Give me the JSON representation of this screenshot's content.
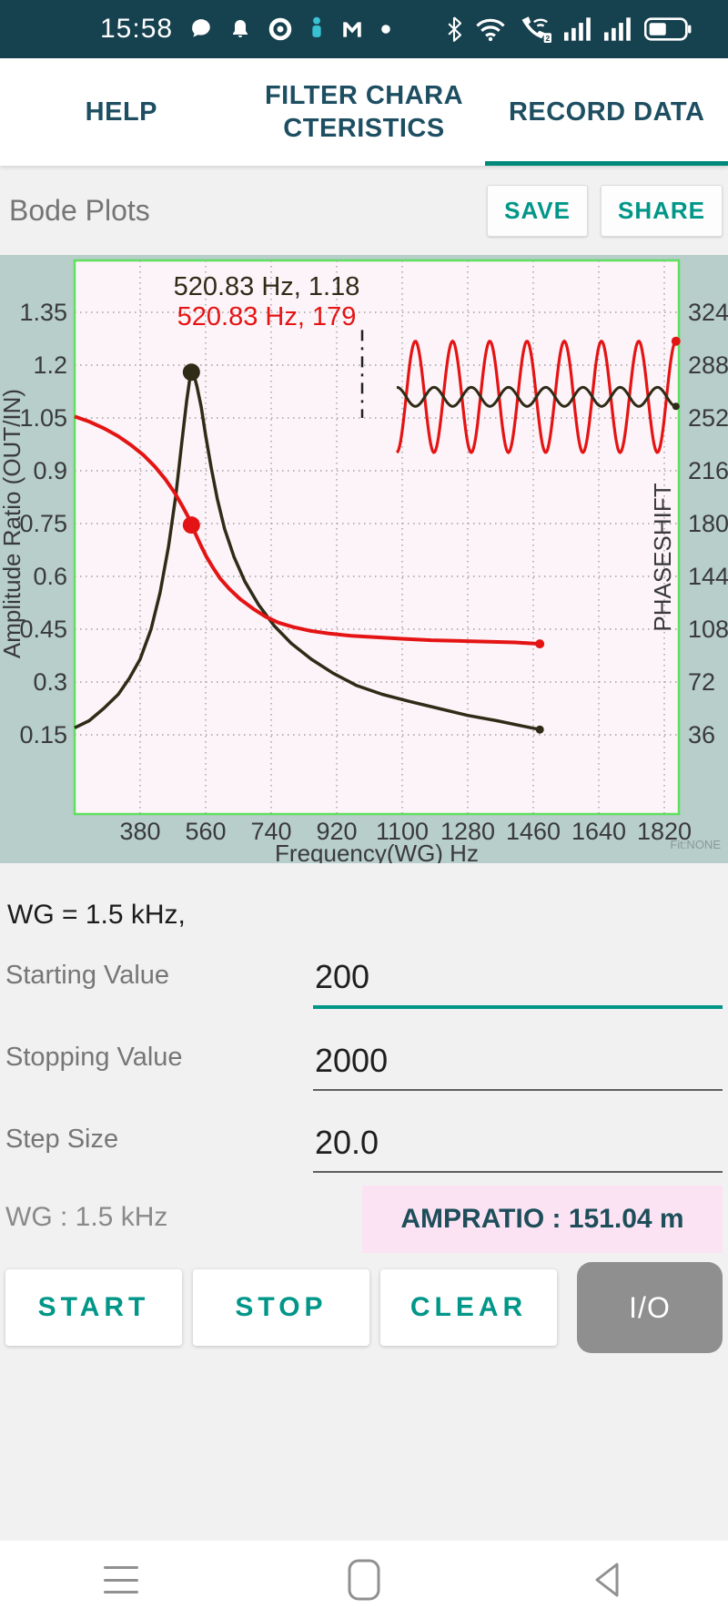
{
  "status_bar": {
    "time": "15:58"
  },
  "tabs": {
    "items": [
      {
        "label": "HELP"
      },
      {
        "label": "FILTER CHARACTERISTICS"
      },
      {
        "label": "RECORD DATA"
      }
    ],
    "active_index": 2
  },
  "header": {
    "title": "Bode Plots",
    "save_label": "SAVE",
    "share_label": "SHARE"
  },
  "chart_data": {
    "type": "line",
    "x_axis": {
      "label": "Frequency(WG) Hz",
      "range": [
        200,
        1860
      ],
      "ticks": [
        380,
        560,
        740,
        920,
        1100,
        1280,
        1460,
        1640,
        1820
      ]
    },
    "y_left": {
      "label": "Amplitude Ratio (OUT/IN)",
      "ticks": [
        0.15,
        0.3,
        0.45,
        0.6,
        0.75,
        0.9,
        1.05,
        1.2,
        1.35
      ]
    },
    "y_right": {
      "label": "PHASESHIFT",
      "ticks": [
        36,
        72,
        108,
        144,
        180,
        216,
        252,
        288,
        324
      ]
    },
    "grid": true,
    "fit_note": "Fit:NONE",
    "annotations": [
      {
        "text": "520.83 Hz, 1.18",
        "color": "#2e2b17"
      },
      {
        "text": "520.83 Hz, 179",
        "color": "#e41414"
      }
    ],
    "markers": [
      {
        "series": "amplitude_ratio",
        "f": 520.83,
        "value": 1.18
      },
      {
        "series": "phase",
        "f": 520.83,
        "value": 179
      }
    ],
    "series": [
      {
        "name": "amplitude_ratio",
        "axis": "left",
        "color": "#2e2b17",
        "width": 3.5,
        "end_marker": 4.5,
        "points": [
          [
            200,
            0.17
          ],
          [
            240,
            0.19
          ],
          [
            280,
            0.225
          ],
          [
            320,
            0.265
          ],
          [
            350,
            0.31
          ],
          [
            380,
            0.365
          ],
          [
            410,
            0.45
          ],
          [
            435,
            0.555
          ],
          [
            458,
            0.685
          ],
          [
            478,
            0.83
          ],
          [
            495,
            0.985
          ],
          [
            508,
            1.1
          ],
          [
            517,
            1.165
          ],
          [
            521,
            1.18
          ],
          [
            527,
            1.175
          ],
          [
            536,
            1.14
          ],
          [
            548,
            1.08
          ],
          [
            560,
            1.0
          ],
          [
            575,
            0.91
          ],
          [
            592,
            0.82
          ],
          [
            612,
            0.735
          ],
          [
            638,
            0.655
          ],
          [
            668,
            0.585
          ],
          [
            705,
            0.52
          ],
          [
            748,
            0.46
          ],
          [
            795,
            0.41
          ],
          [
            850,
            0.365
          ],
          [
            910,
            0.325
          ],
          [
            975,
            0.29
          ],
          [
            1045,
            0.265
          ],
          [
            1120,
            0.245
          ],
          [
            1200,
            0.225
          ],
          [
            1280,
            0.205
          ],
          [
            1360,
            0.19
          ],
          [
            1430,
            0.175
          ],
          [
            1478,
            0.165
          ]
        ]
      },
      {
        "name": "phase",
        "axis": "right",
        "color": "#e41414",
        "width": 4,
        "end_marker": 5,
        "points": [
          [
            200,
            253
          ],
          [
            240,
            249.5
          ],
          [
            280,
            245
          ],
          [
            320,
            239.5
          ],
          [
            355,
            233.5
          ],
          [
            390,
            226.5
          ],
          [
            420,
            219
          ],
          [
            450,
            210
          ],
          [
            475,
            201
          ],
          [
            497,
            191.5
          ],
          [
            511,
            185
          ],
          [
            521,
            179
          ],
          [
            533,
            172.5
          ],
          [
            547,
            165
          ],
          [
            562,
            157.5
          ],
          [
            580,
            150
          ],
          [
            600,
            142.5
          ],
          [
            625,
            135.5
          ],
          [
            655,
            128.5
          ],
          [
            690,
            122
          ],
          [
            725,
            116.5
          ],
          [
            760,
            112.5
          ],
          [
            800,
            109.5
          ],
          [
            845,
            107
          ],
          [
            900,
            105
          ],
          [
            960,
            103.5
          ],
          [
            1030,
            102.5
          ],
          [
            1100,
            101.5
          ],
          [
            1180,
            100.5
          ],
          [
            1260,
            100
          ],
          [
            1340,
            99.5
          ],
          [
            1410,
            99
          ],
          [
            1478,
            98
          ]
        ]
      }
    ],
    "inset_waveform": {
      "f_start": 1085,
      "f_end": 1852,
      "cycles": 7.5,
      "center": 1.11,
      "input_amplitude": 0.158,
      "input_color": "#e41414",
      "output_amplitude": 0.027,
      "output_color": "#2e2b17",
      "phase_difference_deg": 179
    },
    "cursor": {
      "f": 990,
      "v_top": 1.3,
      "v_bottom": 1.05
    },
    "plot_bg": "#fdf4f9",
    "plot_border": "#5fe05f",
    "grid_color": "#9f9f9f",
    "tick_color": "#3a3a3a"
  },
  "wg_line": "WG = 1.5 kHz,",
  "fields": [
    {
      "label": "Starting Value",
      "value": "200"
    },
    {
      "label": "Stopping Value",
      "value": "2000"
    },
    {
      "label": "Step Size",
      "value": "20.0"
    }
  ],
  "readout": {
    "wg": "WG : 1.5 kHz",
    "ampratio": "AMPRATIO : 151.04 m"
  },
  "actions": {
    "start": "START",
    "stop": "STOP",
    "clear": "CLEAR",
    "io": "I/O"
  },
  "icons": {
    "status_left": [
      "chat-icon",
      "bell-icon",
      "record-icon",
      "person-icon",
      "gmail-icon",
      "dot-icon"
    ],
    "status_right": [
      "bluetooth-icon",
      "wifi-icon",
      "wifi-calling-icon",
      "signal-icon",
      "signal-icon",
      "battery-icon"
    ],
    "nav": [
      "recents-icon",
      "home-icon",
      "back-icon"
    ]
  },
  "colors": {
    "accent": "#009688",
    "tab_indicator": "#00897b",
    "status_bar_bg": "#16414f",
    "chart_outer_bg": "#b7cecb",
    "ampratio_bg": "#fbe3f3",
    "ampratio_text": "#1d4e5a",
    "io_button_bg": "#8f8f8f"
  }
}
